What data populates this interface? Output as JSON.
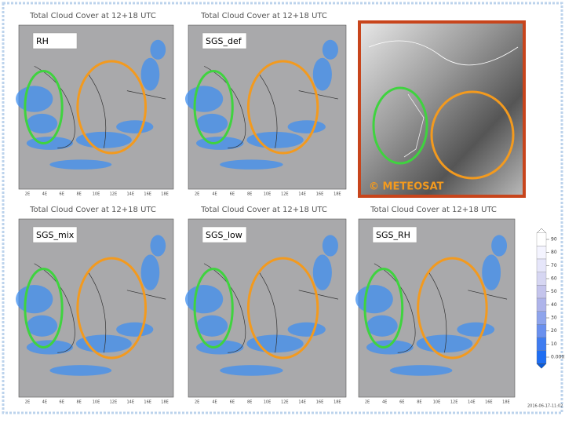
{
  "panels": [
    {
      "title": "Total Cloud Cover at 12+18 UTC",
      "label": "RH"
    },
    {
      "title": "Total Cloud Cover at 12+18 UTC",
      "label": "SGS_def"
    },
    {
      "title": "Total Cloud Cover at 12+18 UTC",
      "label": "SGS_mix"
    },
    {
      "title": "Total Cloud Cover at 12+18 UTC",
      "label": "SGS_low"
    },
    {
      "title": "Total Cloud Cover at 12+18 UTC",
      "label": "SGS_RH"
    }
  ],
  "map_axis": {
    "lon_ticks": [
      "2E",
      "4E",
      "6E",
      "8E",
      "10E",
      "12E",
      "14E",
      "16E",
      "18E"
    ]
  },
  "satellite": {
    "credit": "© METEOSAT"
  },
  "colorbar": {
    "ticks": [
      90,
      80,
      70,
      60,
      50,
      40,
      30,
      20,
      10,
      0.0001
    ]
  },
  "footer": {
    "timestamp": "2016-06-17-11:02"
  }
}
